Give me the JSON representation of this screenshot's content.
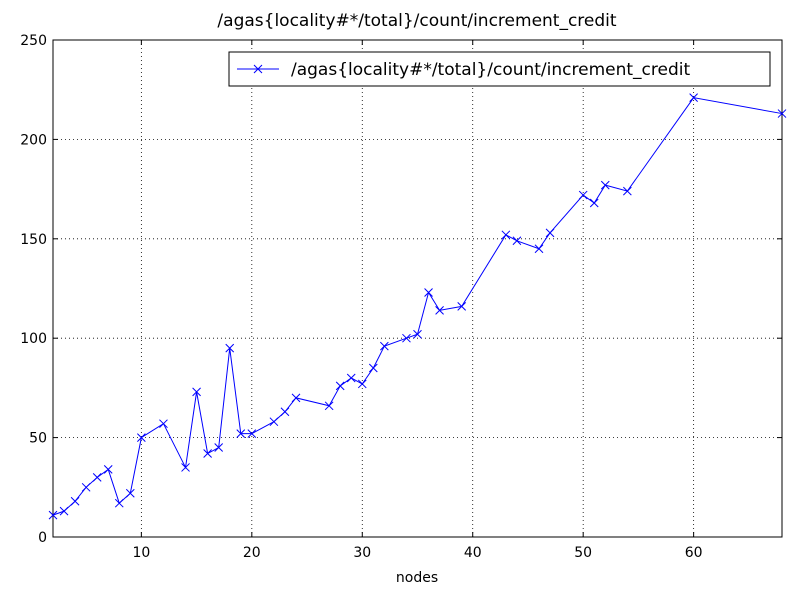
{
  "chart_data": {
    "type": "line",
    "title": "/agas{locality#*/total}/count/increment_credit",
    "x_label": "nodes",
    "x": [
      2,
      3,
      4,
      5,
      6,
      7,
      8,
      9,
      10,
      12,
      14,
      15,
      16,
      17,
      18,
      19,
      20,
      22,
      23,
      24,
      27,
      28,
      29,
      30,
      31,
      32,
      34,
      35,
      36,
      37,
      39,
      43,
      44,
      46,
      47,
      50,
      51,
      52,
      54,
      60,
      68
    ],
    "series": [
      {
        "name": "/agas{locality#*/total}/count/increment_credit",
        "color": "#0000ff",
        "values": [
          11,
          13,
          18,
          25,
          30,
          34,
          17,
          22,
          50,
          57,
          35,
          73,
          42,
          45,
          95,
          52,
          52,
          58,
          63,
          70,
          66,
          76,
          80,
          77,
          85,
          96,
          100,
          102,
          123,
          114,
          116,
          152,
          149,
          145,
          153,
          172,
          168,
          177,
          174,
          221,
          213
        ]
      }
    ],
    "xlim": [
      2,
      68
    ],
    "xticks": [
      10,
      20,
      30,
      40,
      50,
      60
    ],
    "ylim": [
      0,
      250
    ],
    "yticks": [
      0,
      50,
      100,
      150,
      200,
      250
    ],
    "grid": true,
    "legend": "upper right",
    "marker": "x"
  }
}
